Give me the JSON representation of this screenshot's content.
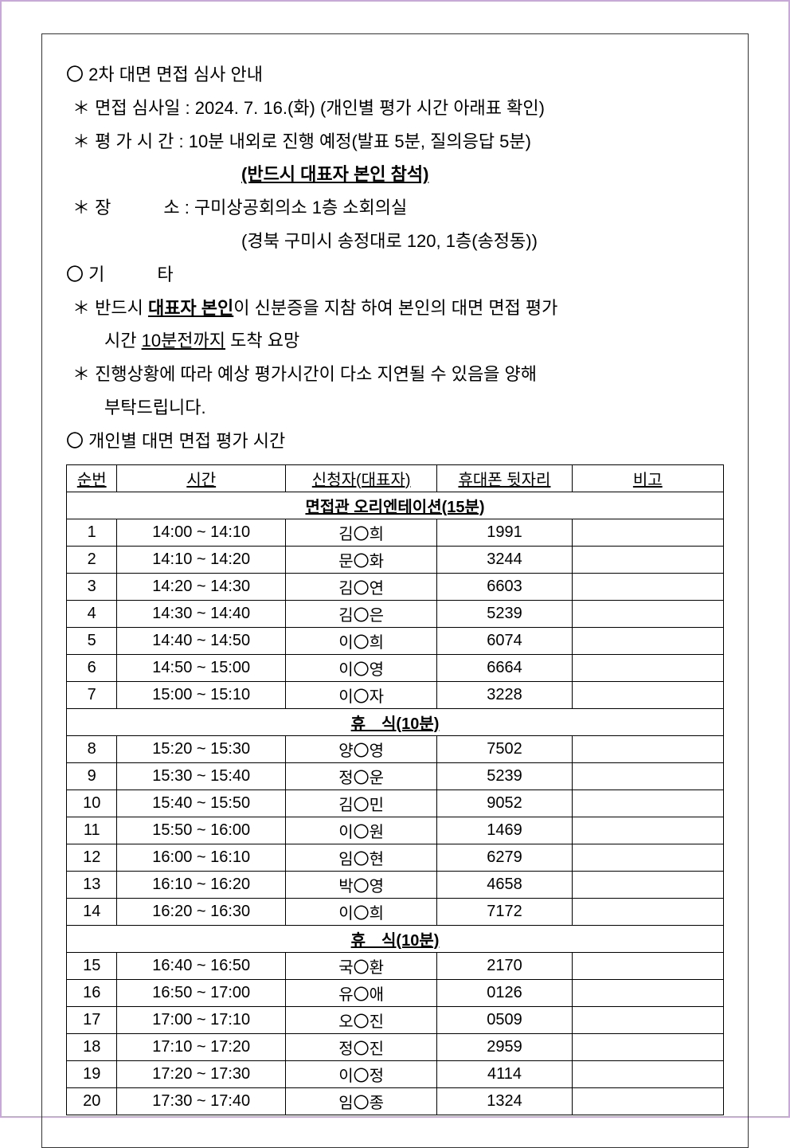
{
  "header": {
    "title": "〇 2차 대면 면접 심사 안내",
    "date_label": "＊ 면접 심사일 : 2024. 7. 16.(화) (개인별 평가 시간 아래표 확인)",
    "time_label": "＊ 평 가 시 간 : 10분 내외로 진행 예정(발표 5분, 질의응답 5분)",
    "must_attend": "(반드시 대표자 본인 참석)",
    "place_label": "＊ 장　　　소 : 구미상공회의소 1층 소회의실",
    "place_detail": "(경북 구미시 송정대로 120, 1층(송정동))",
    "etc_label": "〇 기　　　타",
    "etc1_prefix": "＊ 반드시 ",
    "etc1_bold1": "대표자 본인",
    "etc1_mid": "이 신분증을 지참 하여 본인의 대면 면접 평가",
    "etc1_line2_prefix": "시간 ",
    "etc1_bold2": "10분전까지",
    "etc1_line2_suffix": " 도착 요망",
    "etc2": "＊ 진행상황에 따라 예상 평가시간이 다소 지연될 수 있음을 양해 부탁드립니다.",
    "etc2_line1": "＊ 진행상황에 따라 예상 평가시간이 다소 지연될 수 있음을 양해",
    "etc2_line2": "부탁드립니다.",
    "schedule_label": "〇 개인별 대면 면접 평가 시간"
  },
  "table": {
    "columns": [
      "순번",
      "시간",
      "신청자(대표자)",
      "휴대폰 뒷자리",
      "비고"
    ],
    "orientation_label": "면접관 오리엔테이션(15분)",
    "break1_label": "휴　식(10분)",
    "break2_label": "휴　식(10분)",
    "col_widths": {
      "num": 60,
      "time": 200,
      "name": 180,
      "phone": 160,
      "note": 180
    },
    "font_size": 20,
    "border_color": "#000000",
    "group1": [
      {
        "num": "1",
        "time": "14:00 ~ 14:10",
        "name": "김〇희",
        "phone": "1991",
        "note": ""
      },
      {
        "num": "2",
        "time": "14:10 ~ 14:20",
        "name": "문〇화",
        "phone": "3244",
        "note": ""
      },
      {
        "num": "3",
        "time": "14:20 ~ 14:30",
        "name": "김〇연",
        "phone": "6603",
        "note": ""
      },
      {
        "num": "4",
        "time": "14:30 ~ 14:40",
        "name": "김〇은",
        "phone": "5239",
        "note": ""
      },
      {
        "num": "5",
        "time": "14:40 ~ 14:50",
        "name": "이〇희",
        "phone": "6074",
        "note": ""
      },
      {
        "num": "6",
        "time": "14:50 ~ 15:00",
        "name": "이〇영",
        "phone": "6664",
        "note": ""
      },
      {
        "num": "7",
        "time": "15:00 ~ 15:10",
        "name": "이〇자",
        "phone": "3228",
        "note": ""
      }
    ],
    "group2": [
      {
        "num": "8",
        "time": "15:20 ~ 15:30",
        "name": "양〇영",
        "phone": "7502",
        "note": ""
      },
      {
        "num": "9",
        "time": "15:30 ~ 15:40",
        "name": "정〇운",
        "phone": "5239",
        "note": ""
      },
      {
        "num": "10",
        "time": "15:40 ~ 15:50",
        "name": "김〇민",
        "phone": "9052",
        "note": ""
      },
      {
        "num": "11",
        "time": "15:50 ~ 16:00",
        "name": "이〇원",
        "phone": "1469",
        "note": ""
      },
      {
        "num": "12",
        "time": "16:00 ~ 16:10",
        "name": "임〇현",
        "phone": "6279",
        "note": ""
      },
      {
        "num": "13",
        "time": "16:10 ~ 16:20",
        "name": "박〇영",
        "phone": "4658",
        "note": ""
      },
      {
        "num": "14",
        "time": "16:20 ~ 16:30",
        "name": "이〇희",
        "phone": "7172",
        "note": ""
      }
    ],
    "group3": [
      {
        "num": "15",
        "time": "16:40 ~ 16:50",
        "name": "국〇환",
        "phone": "2170",
        "note": ""
      },
      {
        "num": "16",
        "time": "16:50 ~ 17:00",
        "name": "유〇애",
        "phone": "0126",
        "note": ""
      },
      {
        "num": "17",
        "time": "17:00 ~ 17:10",
        "name": "오〇진",
        "phone": "0509",
        "note": ""
      },
      {
        "num": "18",
        "time": "17:10 ~ 17:20",
        "name": "정〇진",
        "phone": "2959",
        "note": ""
      },
      {
        "num": "19",
        "time": "17:20 ~ 17:30",
        "name": "이〇정",
        "phone": "4114",
        "note": ""
      },
      {
        "num": "20",
        "time": "17:30 ~ 17:40",
        "name": "임〇종",
        "phone": "1324",
        "note": ""
      }
    ]
  },
  "style": {
    "page_border_color": "#c8a8d8",
    "text_color": "#000000",
    "background_color": "#ffffff",
    "body_font_size": 22,
    "table_font_size": 20
  }
}
